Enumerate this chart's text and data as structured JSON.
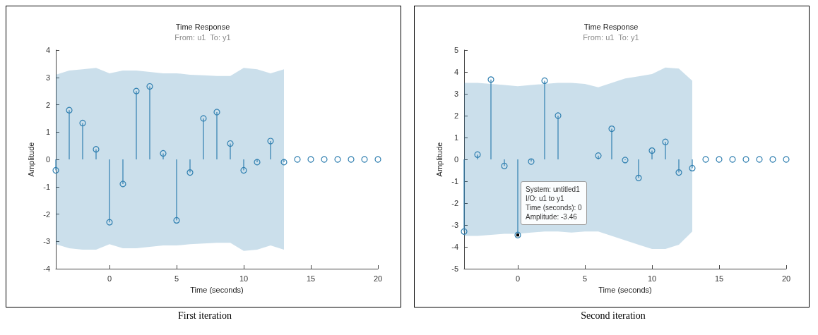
{
  "chart_data": [
    {
      "type": "lollipop",
      "title": "Time Response",
      "subtitle": "From: u1  To: y1",
      "xlabel": "Time (seconds)",
      "ylabel": "Amplitude",
      "xlim": [
        -4,
        20
      ],
      "xticks": [
        0,
        5,
        10,
        15,
        20
      ],
      "ylim": [
        -4,
        4
      ],
      "yticks": [
        -4,
        -3,
        -2,
        -1,
        0,
        1,
        2,
        3,
        4
      ],
      "grid": false,
      "marker": "circle",
      "x": [
        -4,
        -3,
        -2,
        -1,
        0,
        1,
        2,
        3,
        4,
        5,
        6,
        7,
        8,
        9,
        10,
        11,
        12,
        13,
        14,
        15,
        16,
        17,
        18,
        19,
        20
      ],
      "series": [
        {
          "color": "#2f7fb0",
          "values": [
            -0.4,
            1.8,
            1.33,
            0.37,
            -2.3,
            -0.9,
            2.5,
            2.67,
            0.22,
            -2.23,
            -0.48,
            1.5,
            1.73,
            0.58,
            -0.4,
            -0.1,
            0.67,
            -0.1,
            0,
            0,
            0,
            0,
            0,
            0,
            0
          ],
          "upper": [
            3.1,
            3.25,
            3.3,
            3.35,
            3.15,
            3.25,
            3.25,
            3.2,
            3.15,
            3.15,
            3.1,
            3.08,
            3.05,
            3.05,
            3.35,
            3.3,
            3.15,
            3.3,
            null,
            null,
            null,
            null,
            null,
            null,
            null
          ],
          "lower": [
            -3.1,
            -3.25,
            -3.3,
            -3.3,
            -3.1,
            -3.25,
            -3.25,
            -3.2,
            -3.15,
            -3.15,
            -3.1,
            -3.08,
            -3.05,
            -3.05,
            -3.35,
            -3.3,
            -3.15,
            -3.3,
            null,
            null,
            null,
            null,
            null,
            null,
            null
          ]
        }
      ],
      "annotations": [
        "First iteration"
      ]
    },
    {
      "type": "lollipop",
      "title": "Time Response",
      "subtitle": "From: u1  To: y1",
      "xlabel": "Time (seconds)",
      "ylabel": "Amplitude",
      "xlim": [
        -4,
        20
      ],
      "xticks": [
        0,
        5,
        10,
        15,
        20
      ],
      "ylim": [
        -5,
        5
      ],
      "yticks": [
        -5,
        -4,
        -3,
        -2,
        -1,
        0,
        1,
        2,
        3,
        4,
        5
      ],
      "grid": false,
      "marker": "circle",
      "x": [
        -4,
        -3,
        -2,
        -1,
        0,
        1,
        2,
        3,
        4,
        5,
        6,
        7,
        8,
        9,
        10,
        11,
        12,
        13,
        14,
        15,
        16,
        17,
        18,
        19,
        20
      ],
      "series": [
        {
          "color": "#2f7fb0",
          "values": [
            -3.3,
            0.22,
            3.65,
            -0.3,
            -3.46,
            -0.1,
            3.6,
            2.0,
            null,
            null,
            0.17,
            1.4,
            -0.03,
            -0.85,
            0.4,
            0.8,
            -0.6,
            -0.4,
            0,
            0,
            0,
            0,
            0,
            0,
            0
          ],
          "upper": [
            3.5,
            3.5,
            3.45,
            3.4,
            3.35,
            3.4,
            3.45,
            3.5,
            3.5,
            3.45,
            3.3,
            3.5,
            3.7,
            3.8,
            3.9,
            4.2,
            4.15,
            3.6,
            null,
            null,
            null,
            null,
            null,
            null,
            null
          ],
          "lower": [
            -3.5,
            -3.5,
            -3.45,
            -3.4,
            -3.4,
            -3.35,
            -3.3,
            -3.3,
            -3.35,
            -3.3,
            -3.3,
            -3.5,
            -3.7,
            -3.9,
            -4.1,
            -4.1,
            -3.9,
            -3.3,
            null,
            null,
            null,
            null,
            null,
            null,
            null
          ]
        }
      ],
      "annotations": [
        {
          "text": "System: untitled1\nI/O: u1 to y1\nTime (seconds): 0\nAmplitude: -3.46",
          "x": 0,
          "y": -3.46
        },
        "Second iteration"
      ]
    }
  ]
}
